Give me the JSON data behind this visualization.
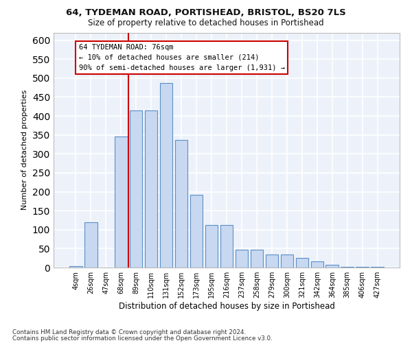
{
  "title1": "64, TYDEMAN ROAD, PORTISHEAD, BRISTOL, BS20 7LS",
  "title2": "Size of property relative to detached houses in Portishead",
  "xlabel": "Distribution of detached houses by size in Portishead",
  "ylabel": "Number of detached properties",
  "bar_color": "#c8d8f0",
  "bar_edge_color": "#5a8fc8",
  "categories": [
    "4sqm",
    "26sqm",
    "47sqm",
    "68sqm",
    "89sqm",
    "110sqm",
    "131sqm",
    "152sqm",
    "173sqm",
    "195sqm",
    "216sqm",
    "237sqm",
    "258sqm",
    "279sqm",
    "300sqm",
    "321sqm",
    "342sqm",
    "364sqm",
    "385sqm",
    "406sqm",
    "427sqm"
  ],
  "values": [
    4,
    120,
    0,
    345,
    415,
    415,
    487,
    337,
    192,
    113,
    113,
    47,
    47,
    35,
    35,
    25,
    17,
    8,
    1,
    2,
    1
  ],
  "ylim": [
    0,
    620
  ],
  "yticks": [
    0,
    50,
    100,
    150,
    200,
    250,
    300,
    350,
    400,
    450,
    500,
    550,
    600
  ],
  "vline_x": 3.5,
  "vline_color": "#cc0000",
  "annotation_text": "64 TYDEMAN ROAD: 76sqm\n← 10% of detached houses are smaller (214)\n90% of semi-detached houses are larger (1,931) →",
  "annotation_box_edge": "#cc0000",
  "background_color": "#edf2fa",
  "grid_color": "#ffffff",
  "footer1": "Contains HM Land Registry data © Crown copyright and database right 2024.",
  "footer2": "Contains public sector information licensed under the Open Government Licence v3.0."
}
